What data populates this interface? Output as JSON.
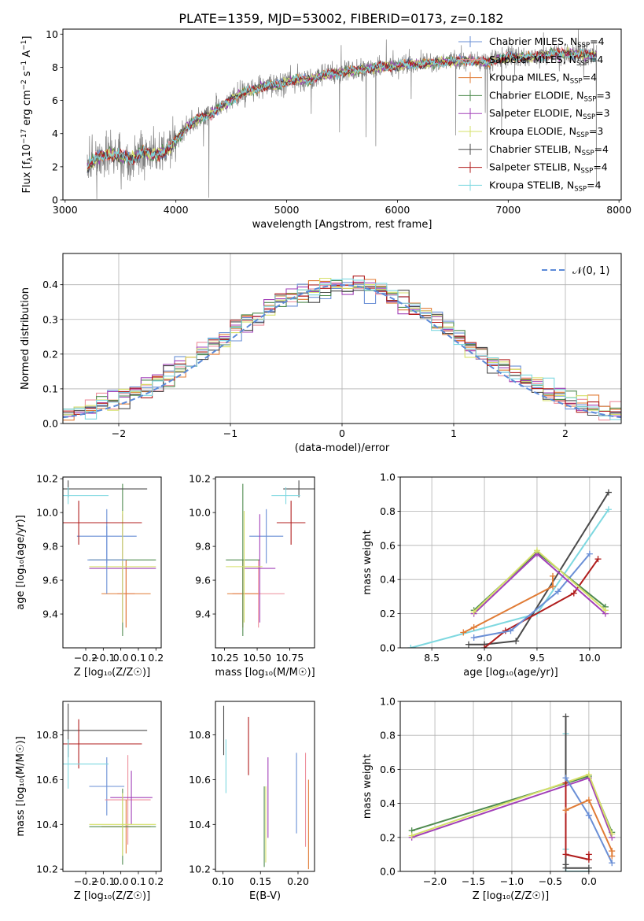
{
  "figure_title": "PLATE=1359, MJD=53002, FIBERID=0173, z=0.182",
  "colors": {
    "chabrier_miles": "#6a8fd6",
    "salpeter_miles": "#ee8f9c",
    "kroupa_miles": "#e07b35",
    "chabrier_elodie": "#4f8b4f",
    "salpeter_elodie": "#a240b8",
    "kroupa_elodie": "#d6e06a",
    "chabrier_stelib": "#4a4a4a",
    "salpeter_stelib": "#b01c1c",
    "kroupa_stelib": "#7ed8e0",
    "data_gray": "#808080",
    "normal_curve": "#5b8ad8"
  },
  "chart_data": [
    {
      "id": "spectrum",
      "type": "line",
      "title": "PLATE=1359, MJD=53002, FIBERID=0173, z=0.182",
      "xlabel": "wavelength [Angstrom, rest frame]",
      "ylabel_parts": [
        "Flux [f",
        "λ",
        "10",
        "−17",
        " erg cm",
        "−2",
        " s",
        "−1",
        " A",
        "−1",
        "]"
      ],
      "xlim": [
        2980,
        8020
      ],
      "ylim": [
        0,
        10.3
      ],
      "xticks": [
        3000,
        4000,
        5000,
        6000,
        7000,
        8000
      ],
      "yticks": [
        0,
        2,
        4,
        6,
        8,
        10
      ],
      "grid": false,
      "legend_position": "top-right",
      "legend": [
        {
          "label": "Chabrier MILES, N",
          "sub": "SSP",
          "suffix": "=4"
        },
        {
          "label": "Salpeter MILES, N",
          "sub": "SSP",
          "suffix": "=4"
        },
        {
          "label": "Kroupa MILES, N",
          "sub": "SSP",
          "suffix": "=4"
        },
        {
          "label": "Chabrier ELODIE, N",
          "sub": "SSP",
          "suffix": "=3"
        },
        {
          "label": "Salpeter ELODIE, N",
          "sub": "SSP",
          "suffix": "=3"
        },
        {
          "label": "Kroupa ELODIE, N",
          "sub": "SSP",
          "suffix": "=3"
        },
        {
          "label": "Chabrier STELIB, N",
          "sub": "SSP",
          "suffix": "=4"
        },
        {
          "label": "Salpeter STELIB, N",
          "sub": "SSP",
          "suffix": "=4"
        },
        {
          "label": "Kroupa STELIB, N",
          "sub": "SSP",
          "suffix": "=4"
        }
      ],
      "continuum_x": [
        3200,
        3300,
        3400,
        3500,
        3600,
        3700,
        3800,
        3900,
        4000,
        4100,
        4200,
        4300,
        4400,
        4500,
        4600,
        4700,
        4800,
        4900,
        5000,
        5100,
        5200,
        5300,
        5400,
        5500,
        5600,
        5700,
        5800,
        5900,
        6000,
        6200,
        6400,
        6600,
        6800,
        7000,
        7200,
        7400,
        7600,
        7800
      ],
      "continuum_y": [
        2.0,
        2.6,
        2.8,
        2.6,
        2.5,
        2.9,
        2.7,
        2.9,
        3.6,
        4.4,
        4.9,
        5.1,
        5.6,
        6.0,
        6.5,
        6.6,
        6.9,
        6.9,
        7.1,
        7.3,
        7.2,
        7.5,
        7.6,
        7.7,
        7.8,
        7.9,
        8.0,
        8.0,
        8.1,
        8.2,
        8.3,
        8.4,
        8.3,
        8.6,
        8.6,
        8.8,
        8.8,
        8.7
      ],
      "data_x_range": [
        3200,
        7800
      ]
    },
    {
      "id": "residuals",
      "type": "line",
      "xlabel": "(data-model)/error",
      "ylabel": "Normed distribution",
      "xlim": [
        -2.5,
        2.5
      ],
      "ylim": [
        0,
        0.49
      ],
      "xticks": [
        -2,
        -1,
        0,
        1,
        2
      ],
      "yticks": [
        0.0,
        0.1,
        0.2,
        0.3,
        0.4
      ],
      "grid": true,
      "legend_position": "top-right",
      "legend": [
        {
          "label": "𝒩(0, 1)"
        }
      ],
      "bin_width": 0.1,
      "normal": {
        "mu": 0,
        "sigma": 1
      }
    },
    {
      "id": "age_vs_Z",
      "type": "scatter",
      "xlabel": "Z [log₁₀(Z/Z☉)]",
      "ylabel": "age  [log₁₀(age/yr)]",
      "xlim": [
        -0.33,
        0.23
      ],
      "ylim": [
        9.2,
        10.21
      ],
      "xticks": [
        -0.2,
        -0.1,
        0.0,
        0.1,
        0.2
      ],
      "yticks": [
        9.4,
        9.6,
        9.8,
        10.0,
        10.2
      ],
      "grid": false,
      "points": [
        {
          "model": "chabrier_miles",
          "x": -0.08,
          "xerr": 0.17,
          "y": 9.86,
          "yerr": 0.16
        },
        {
          "model": "salpeter_miles",
          "x": 0.03,
          "xerr": 0.05,
          "y": 9.52,
          "yerr": 0.2
        },
        {
          "model": "kroupa_miles",
          "x": 0.03,
          "xerr": 0.14,
          "y": 9.52,
          "yerr": 0.2
        },
        {
          "model": "chabrier_elodie",
          "x": 0.01,
          "xerr": 0.19,
          "y": 9.72,
          "yerr": 0.45
        },
        {
          "model": "salpeter_elodie",
          "x": 0.01,
          "xerr": 0.19,
          "y": 9.67,
          "yerr": 0.32
        },
        {
          "model": "kroupa_elodie",
          "x": 0.01,
          "xerr": 0.19,
          "y": 9.68,
          "yerr": 0.33
        },
        {
          "model": "chabrier_stelib",
          "x": -0.3,
          "xerr": 0.45,
          "y": 10.14,
          "yerr": 0.05
        },
        {
          "model": "salpeter_stelib",
          "x": -0.24,
          "xerr": 0.36,
          "y": 9.94,
          "yerr": 0.13
        },
        {
          "model": "kroupa_stelib",
          "x": -0.3,
          "xerr": 0.23,
          "y": 10.1,
          "yerr": 0.05
        },
        {
          "model": "chabrier_miles",
          "x": -0.08,
          "xerr": 0.11,
          "y": 9.72,
          "yerr": 0.2
        }
      ]
    },
    {
      "id": "age_vs_mass",
      "type": "scatter",
      "xlabel": "mass [log₁₀(M/M☉)]",
      "ylabel": "",
      "xlim": [
        10.18,
        10.94
      ],
      "ylim": [
        9.2,
        10.21
      ],
      "xticks": [
        10.25,
        10.5,
        10.75
      ],
      "xtick_labels": [
        "10.25",
        "10.50",
        "10.75"
      ],
      "yticks": [
        9.4,
        9.6,
        9.8,
        10.0,
        10.2
      ],
      "grid": false,
      "points": [
        {
          "model": "chabrier_miles",
          "x": 10.57,
          "xerr": 0.13,
          "y": 9.86,
          "yerr": 0.16
        },
        {
          "model": "salpeter_miles",
          "x": 10.51,
          "xerr": 0.2,
          "y": 9.52,
          "yerr": 0.2
        },
        {
          "model": "kroupa_miles",
          "x": 10.39,
          "xerr": 0.12,
          "y": 9.52,
          "yerr": 0.2
        },
        {
          "model": "chabrier_elodie",
          "x": 10.39,
          "xerr": 0.13,
          "y": 9.72,
          "yerr": 0.45
        },
        {
          "model": "salpeter_elodie",
          "x": 10.52,
          "xerr": 0.12,
          "y": 9.67,
          "yerr": 0.32
        },
        {
          "model": "kroupa_elodie",
          "x": 10.4,
          "xerr": 0.14,
          "y": 9.68,
          "yerr": 0.33
        },
        {
          "model": "chabrier_stelib",
          "x": 10.82,
          "xerr": 0.12,
          "y": 10.14,
          "yerr": 0.05
        },
        {
          "model": "salpeter_stelib",
          "x": 10.76,
          "xerr": 0.11,
          "y": 9.94,
          "yerr": 0.13
        },
        {
          "model": "kroupa_stelib",
          "x": 10.72,
          "xerr": 0.11,
          "y": 10.1,
          "yerr": 0.05
        }
      ]
    },
    {
      "id": "massweight_vs_age",
      "type": "line",
      "xlabel": "age  [log₁₀(age/yr)]",
      "ylabel": "mass weight",
      "xlim": [
        8.2,
        10.3
      ],
      "ylim": [
        0,
        1
      ],
      "xticks": [
        8.5,
        9.0,
        9.5,
        10.0
      ],
      "yticks": [
        0.0,
        0.2,
        0.4,
        0.6,
        0.8,
        1.0
      ],
      "grid": true,
      "series": [
        {
          "model": "kroupa_stelib",
          "x": [
            8.3,
            9.5,
            10.18
          ],
          "y": [
            0.0,
            0.2,
            0.81
          ]
        },
        {
          "model": "chabrier_stelib",
          "x": [
            8.85,
            9.0,
            9.3,
            10.18
          ],
          "y": [
            0.02,
            0.02,
            0.04,
            0.91
          ]
        },
        {
          "model": "salpeter_stelib",
          "x": [
            9.0,
            9.2,
            9.85,
            10.08
          ],
          "y": [
            0.0,
            0.1,
            0.32,
            0.52
          ]
        },
        {
          "model": "chabrier_miles",
          "x": [
            8.9,
            9.25,
            9.7,
            10.0
          ],
          "y": [
            0.06,
            0.1,
            0.33,
            0.55
          ]
        },
        {
          "model": "kroupa_miles",
          "x": [
            8.8,
            8.9,
            9.65,
            9.65
          ],
          "y": [
            0.09,
            0.12,
            0.36,
            0.42
          ]
        },
        {
          "model": "chabrier_elodie",
          "x": [
            8.9,
            9.5,
            10.15
          ],
          "y": [
            0.22,
            0.56,
            0.24
          ]
        },
        {
          "model": "salpeter_elodie",
          "x": [
            8.9,
            9.5,
            10.15
          ],
          "y": [
            0.2,
            0.55,
            0.2
          ]
        },
        {
          "model": "kroupa_elodie",
          "x": [
            8.9,
            9.5,
            10.15
          ],
          "y": [
            0.21,
            0.57,
            0.22
          ]
        }
      ]
    },
    {
      "id": "mass_vs_Z",
      "type": "scatter",
      "xlabel": "Z [log₁₀(Z/Z☉)]",
      "ylabel": "mass [log₁₀(M/M☉)]",
      "xlim": [
        -0.33,
        0.23
      ],
      "ylim": [
        10.19,
        10.95
      ],
      "xticks": [
        -0.2,
        -0.1,
        0.0,
        0.1,
        0.2
      ],
      "yticks": [
        10.2,
        10.4,
        10.6,
        10.8
      ],
      "grid": false,
      "points": [
        {
          "model": "chabrier_miles",
          "x": -0.08,
          "xerr": 0.1,
          "y": 10.57,
          "yerr": 0.13
        },
        {
          "model": "salpeter_miles",
          "x": 0.04,
          "xerr": 0.13,
          "y": 10.51,
          "yerr": 0.2
        },
        {
          "model": "kroupa_miles",
          "x": 0.03,
          "xerr": 0.14,
          "y": 10.39,
          "yerr": 0.12
        },
        {
          "model": "chabrier_elodie",
          "x": 0.01,
          "xerr": 0.19,
          "y": 10.39,
          "yerr": 0.17
        },
        {
          "model": "salpeter_elodie",
          "x": 0.06,
          "xerr": 0.12,
          "y": 10.52,
          "yerr": 0.12
        },
        {
          "model": "kroupa_elodie",
          "x": 0.01,
          "xerr": 0.19,
          "y": 10.4,
          "yerr": 0.14
        },
        {
          "model": "chabrier_stelib",
          "x": -0.3,
          "xerr": 0.45,
          "y": 10.82,
          "yerr": 0.12
        },
        {
          "model": "salpeter_stelib",
          "x": -0.24,
          "xerr": 0.36,
          "y": 10.76,
          "yerr": 0.11
        },
        {
          "model": "kroupa_stelib",
          "x": -0.3,
          "xerr": 0.23,
          "y": 10.67,
          "yerr": 0.11
        }
      ]
    },
    {
      "id": "mass_vs_ebv",
      "type": "scatter",
      "xlabel": "E(B-V)",
      "ylabel": "",
      "xlim": [
        0.09,
        0.222
      ],
      "ylim": [
        10.19,
        10.95
      ],
      "xticks": [
        0.1,
        0.15,
        0.2
      ],
      "xtick_labels": [
        "0.10",
        "0.15",
        "0.20"
      ],
      "yticks": [
        10.2,
        10.4,
        10.6,
        10.8
      ],
      "grid": false,
      "points": [
        {
          "model": "chabrier_stelib",
          "x": 0.101,
          "y": 10.82,
          "yerr": 0.11
        },
        {
          "model": "kroupa_stelib",
          "x": 0.104,
          "y": 10.66,
          "yerr": 0.12
        },
        {
          "model": "salpeter_stelib",
          "x": 0.134,
          "y": 10.75,
          "yerr": 0.13
        },
        {
          "model": "chabrier_elodie",
          "x": 0.155,
          "y": 10.39,
          "yerr": 0.18
        },
        {
          "model": "kroupa_elodie",
          "x": 0.157,
          "y": 10.4,
          "yerr": 0.17
        },
        {
          "model": "salpeter_elodie",
          "x": 0.16,
          "y": 10.52,
          "yerr": 0.18
        },
        {
          "model": "chabrier_miles",
          "x": 0.198,
          "y": 10.54,
          "yerr": 0.18
        },
        {
          "model": "salpeter_miles",
          "x": 0.21,
          "y": 10.51,
          "yerr": 0.21
        },
        {
          "model": "kroupa_miles",
          "x": 0.214,
          "y": 10.4,
          "yerr": 0.2
        }
      ]
    },
    {
      "id": "massweight_vs_Z",
      "type": "line",
      "xlabel": "Z [log₁₀(Z/Z☉)]",
      "ylabel": "mass weight",
      "xlim": [
        -2.45,
        0.42
      ],
      "ylim": [
        0,
        1
      ],
      "xticks": [
        -2.0,
        -1.5,
        -1.0,
        -0.5,
        0.0
      ],
      "yticks": [
        0.0,
        0.2,
        0.4,
        0.6,
        0.8,
        1.0
      ],
      "grid": true,
      "series": [
        {
          "model": "chabrier_elodie",
          "x": [
            -2.3,
            0.0,
            0.3
          ],
          "y": [
            0.24,
            0.56,
            0.23
          ]
        },
        {
          "model": "salpeter_elodie",
          "x": [
            -2.3,
            0.0,
            0.3
          ],
          "y": [
            0.2,
            0.55,
            0.2
          ]
        },
        {
          "model": "kroupa_elodie",
          "x": [
            -2.3,
            0.0,
            0.3
          ],
          "y": [
            0.21,
            0.57,
            0.22
          ]
        },
        {
          "model": "kroupa_stelib",
          "x": [
            -0.3,
            -0.3,
            -0.3,
            0.0
          ],
          "y": [
            0.81,
            0.13,
            0.0,
            0.0
          ]
        },
        {
          "model": "chabrier_stelib",
          "x": [
            -0.3,
            -0.3,
            -0.3,
            0.0
          ],
          "y": [
            0.91,
            0.04,
            0.02,
            0.02
          ]
        },
        {
          "model": "salpeter_stelib",
          "x": [
            -0.3,
            -0.3,
            0.0,
            0.0
          ],
          "y": [
            0.52,
            0.1,
            0.07,
            0.1
          ]
        },
        {
          "model": "chabrier_miles",
          "x": [
            -0.3,
            0.0,
            0.0,
            0.3
          ],
          "y": [
            0.55,
            0.33,
            0.33,
            0.05
          ]
        },
        {
          "model": "kroupa_miles",
          "x": [
            -0.3,
            0.0,
            0.3,
            0.3
          ],
          "y": [
            0.36,
            0.42,
            0.12,
            0.09
          ]
        }
      ]
    }
  ]
}
